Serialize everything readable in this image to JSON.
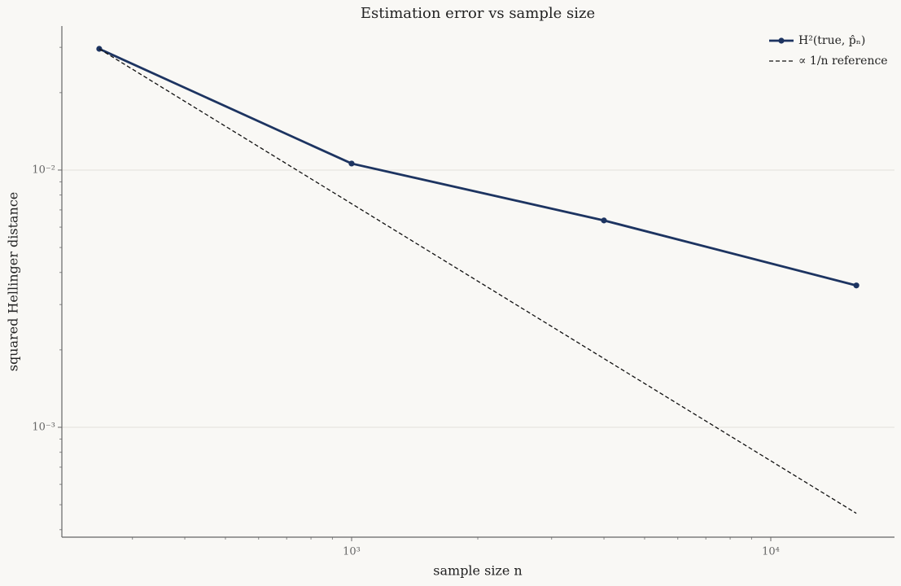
{
  "chart_data": {
    "type": "line",
    "title": "Estimation error vs sample size",
    "xlabel": "sample size n",
    "ylabel": "squared Hellinger distance",
    "x": [
      250,
      1000,
      4000,
      16000
    ],
    "series": [
      {
        "name": "H²(true, p̂ₙ)",
        "color": "#1d3461",
        "values": [
          0.0296,
          0.0106,
          0.00637,
          0.00356
        ],
        "marker": true,
        "dashed": false
      },
      {
        "name": "∝ 1/n reference",
        "color": "#111111",
        "values": [
          0.0296,
          0.0074,
          0.00185,
          0.000463
        ],
        "marker": false,
        "dashed": true
      }
    ],
    "xlim": [
      203.6,
      19730
    ],
    "ylim": [
      0.000374,
      0.0363
    ],
    "xscale": "log",
    "yscale": "log",
    "xticks": [
      {
        "value": 1000,
        "label": "10³"
      },
      {
        "value": 10000,
        "label": "10⁴"
      }
    ],
    "yticks": [
      {
        "value": 0.001,
        "label": "10⁻³"
      },
      {
        "value": 0.01,
        "label": "10⁻²"
      }
    ],
    "xminorticks": [
      300,
      400,
      500,
      600,
      700,
      800,
      900,
      2000,
      3000,
      4000,
      5000,
      6000,
      7000,
      8000,
      9000
    ],
    "yminorticks": [
      0.0004,
      0.0005,
      0.0006,
      0.0007,
      0.0008,
      0.0009,
      0.002,
      0.003,
      0.004,
      0.005,
      0.006,
      0.007,
      0.008,
      0.009,
      0.02,
      0.03
    ],
    "grid": true,
    "legend": "upper right"
  }
}
